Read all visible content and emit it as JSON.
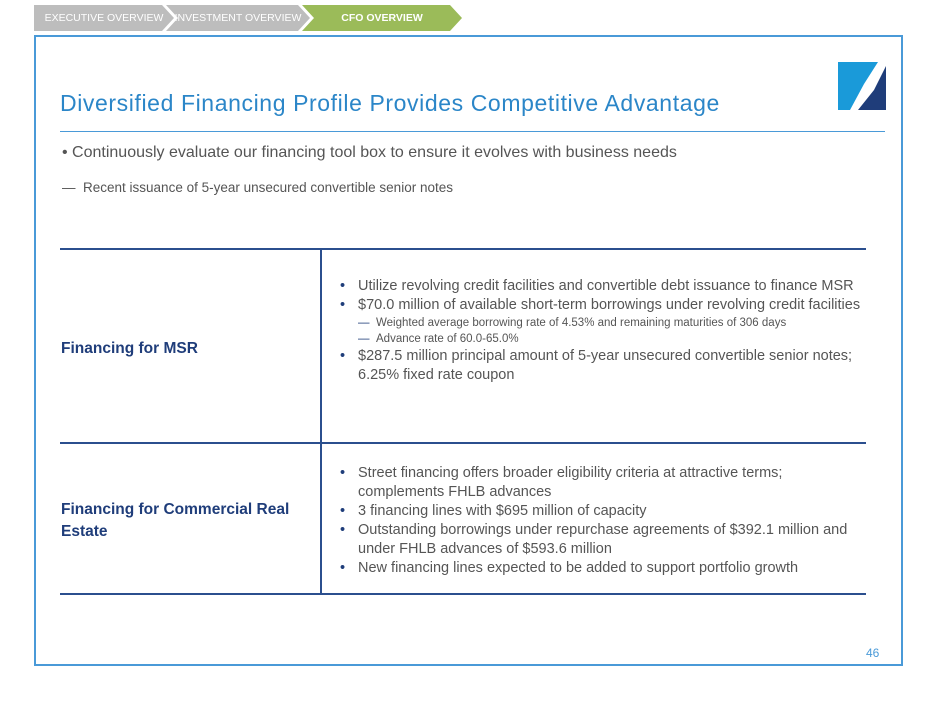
{
  "nav": {
    "tabs": [
      {
        "label": "EXECUTIVE OVERVIEW",
        "active": false
      },
      {
        "label": "INVESTMENT OVERVIEW",
        "active": false
      },
      {
        "label": "CFO OVERVIEW",
        "active": true
      }
    ],
    "active_color": "#9bbb59",
    "inactive_color": "#bdbdbd"
  },
  "title": "Diversified Financing Profile Provides Competitive Advantage",
  "bullet": "Continuously evaluate our financing tool box to ensure it evolves with business needs",
  "sub_bullet": "Recent issuance of 5-year unsecured convertible senior notes",
  "table": {
    "rows": [
      {
        "label": "Financing for MSR",
        "items": [
          {
            "level": 1,
            "text": "Utilize revolving credit facilities and convertible debt issuance to finance MSR"
          },
          {
            "level": 1,
            "text": "$70.0 million of available short-term borrowings under revolving credit facilities"
          },
          {
            "level": 2,
            "text": "Weighted average borrowing rate of 4.53% and remaining maturities of 306 days"
          },
          {
            "level": 2,
            "text": "Advance rate of 60.0-65.0%"
          },
          {
            "level": 1,
            "text": "$287.5 million principal amount of 5-year unsecured convertible senior notes; 6.25% fixed rate coupon"
          }
        ]
      },
      {
        "label": "Financing for Commercial Real Estate",
        "items": [
          {
            "level": 1,
            "text": "Street financing offers broader eligibility criteria at attractive terms; complements FHLB advances"
          },
          {
            "level": 1,
            "text": "3 financing lines with $695 million of capacity"
          },
          {
            "level": 1,
            "text": "Outstanding borrowings under repurchase agreements of $392.1 million and under FHLB advances of $593.6 million"
          },
          {
            "level": 1,
            "text": "New financing lines expected to be added to support portfolio growth"
          }
        ]
      }
    ]
  },
  "page_number": "46",
  "colors": {
    "title": "#2b86c8",
    "label": "#1f3d7a",
    "frame": "#4a9ad8"
  }
}
